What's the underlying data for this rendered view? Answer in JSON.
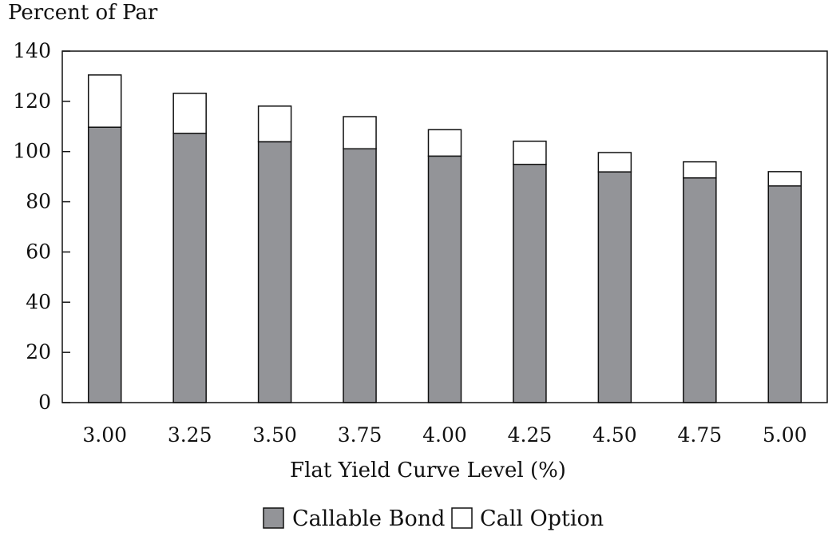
{
  "chart_data": {
    "type": "bar",
    "stacked": true,
    "title": "Percent of Par",
    "xlabel": "Flat Yield Curve Level (%)",
    "ylabel": "",
    "categories": [
      "3.00",
      "3.25",
      "3.50",
      "3.75",
      "4.00",
      "4.25",
      "4.50",
      "4.75",
      "5.00"
    ],
    "series": [
      {
        "name": "Callable Bond",
        "color": "#939498",
        "values": [
          109.7,
          107.2,
          103.9,
          101.1,
          98.2,
          94.9,
          91.9,
          89.5,
          86.3
        ]
      },
      {
        "name": "Call Option",
        "color": "#ffffff",
        "values": [
          20.8,
          16.0,
          14.2,
          12.8,
          10.5,
          9.2,
          7.7,
          6.4,
          5.7
        ]
      }
    ],
    "ylim": [
      0,
      140
    ],
    "yticks": [
      0,
      20,
      40,
      60,
      80,
      100,
      120,
      140
    ],
    "grid": false,
    "legend_position": "bottom"
  }
}
